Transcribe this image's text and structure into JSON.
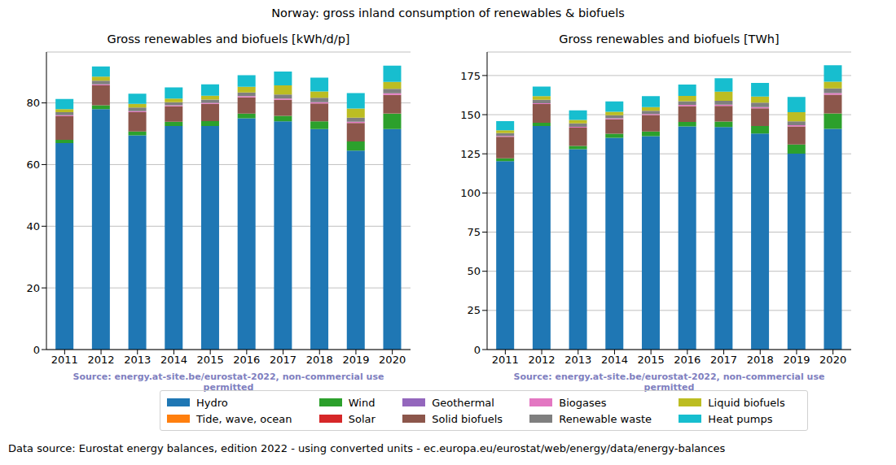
{
  "title": "Norway: gross inland consumption of renewables & biofuels",
  "note": "Data source: Eurostat energy balances, edition 2022 - using converted units - ec.europa.eu/eurostat/web/energy/data/energy-balances",
  "chart_data": [
    {
      "type": "bar",
      "title": "Gross renewables and biofuels [kWh/d/p]",
      "source": "Source: energy.at-site.be/eurostat-2022, non-commercial use permitted",
      "stacked": true,
      "grid": true,
      "legend": "bottom",
      "categories": [
        "2011",
        "2012",
        "2013",
        "2014",
        "2015",
        "2016",
        "2017",
        "2018",
        "2019",
        "2020"
      ],
      "ylim": [
        0,
        96.5
      ],
      "yticks": [
        0,
        20,
        40,
        60,
        80
      ],
      "series": [
        {
          "name": "Hydro",
          "color": "#1f77b4",
          "values": [
            67,
            78,
            69.5,
            72.5,
            72.5,
            75,
            74,
            71.5,
            64.5,
            71.5
          ]
        },
        {
          "name": "Tide, wave, ocean",
          "color": "#ff7f0e",
          "values": [
            0,
            0,
            0,
            0,
            0,
            0,
            0,
            0,
            0,
            0
          ]
        },
        {
          "name": "Wind",
          "color": "#2ca02c",
          "values": [
            1,
            1.2,
            1.2,
            1.4,
            1.6,
            1.5,
            1.8,
            2.5,
            3,
            5
          ]
        },
        {
          "name": "Solar",
          "color": "#d62728",
          "values": [
            0,
            0,
            0,
            0,
            0,
            0,
            0,
            0,
            0,
            0.1
          ]
        },
        {
          "name": "Geothermal",
          "color": "#9467bd",
          "values": [
            0,
            0,
            0,
            0,
            0,
            0,
            0,
            0,
            0,
            0
          ]
        },
        {
          "name": "Solid biofuels",
          "color": "#8c564b",
          "values": [
            7.7,
            6.5,
            6.3,
            5,
            5.6,
            5.3,
            5.2,
            5.8,
            6,
            6
          ]
        },
        {
          "name": "Biogases",
          "color": "#e377c2",
          "values": [
            0.3,
            0.3,
            0.3,
            0.3,
            0.3,
            0.4,
            0.4,
            0.4,
            0.4,
            0.5
          ]
        },
        {
          "name": "Renewable waste",
          "color": "#7f7f7f",
          "values": [
            1,
            1.2,
            1.2,
            1,
            1.1,
            1.2,
            1.3,
            1.5,
            1.3,
            1.5
          ]
        },
        {
          "name": "Liquid biofuels",
          "color": "#bcbd22",
          "values": [
            1,
            1.3,
            1.2,
            1.2,
            1.2,
            1.8,
            3,
            2,
            3,
            2.2
          ]
        },
        {
          "name": "Heat pumps",
          "color": "#17becf",
          "values": [
            3.3,
            3.3,
            3.3,
            3.6,
            3.7,
            3.8,
            4.5,
            4.5,
            5,
            5.3
          ]
        }
      ]
    },
    {
      "type": "bar",
      "title": "Gross renewables and biofuels [TWh]",
      "source": "Source: energy.at-site.be/eurostat-2022, non-commercial use permitted",
      "stacked": true,
      "grid": true,
      "legend": "bottom",
      "categories": [
        "2011",
        "2012",
        "2013",
        "2014",
        "2015",
        "2016",
        "2017",
        "2018",
        "2019",
        "2020"
      ],
      "ylim": [
        0,
        190
      ],
      "yticks": [
        0,
        25,
        50,
        75,
        100,
        125,
        150,
        175
      ],
      "series": [
        {
          "name": "Hydro",
          "color": "#1f77b4",
          "values": [
            120.3,
            142.7,
            127.9,
            135.2,
            136.3,
            142.5,
            142.1,
            138.0,
            125.1,
            140.9
          ]
        },
        {
          "name": "Tide, wave, ocean",
          "color": "#ff7f0e",
          "values": [
            0,
            0,
            0,
            0,
            0,
            0,
            0,
            0,
            0,
            0
          ]
        },
        {
          "name": "Wind",
          "color": "#2ca02c",
          "values": [
            1.8,
            2.2,
            2.2,
            2.6,
            3.0,
            2.9,
            3.5,
            4.8,
            5.8,
            9.9
          ]
        },
        {
          "name": "Solar",
          "color": "#d62728",
          "values": [
            0,
            0,
            0,
            0,
            0,
            0,
            0,
            0,
            0,
            0.2
          ]
        },
        {
          "name": "Geothermal",
          "color": "#9467bd",
          "values": [
            0,
            0,
            0,
            0,
            0,
            0,
            0,
            0,
            0,
            0
          ]
        },
        {
          "name": "Solid biofuels",
          "color": "#8c564b",
          "values": [
            13.8,
            11.9,
            11.6,
            9.3,
            10.5,
            10.1,
            10.0,
            11.2,
            11.6,
            11.8
          ]
        },
        {
          "name": "Biogases",
          "color": "#e377c2",
          "values": [
            0.5,
            0.5,
            0.6,
            0.6,
            0.6,
            0.8,
            0.8,
            0.8,
            0.8,
            1.0
          ]
        },
        {
          "name": "Renewable waste",
          "color": "#7f7f7f",
          "values": [
            1.8,
            2.2,
            2.2,
            1.9,
            2.1,
            2.3,
            2.5,
            2.9,
            2.5,
            3.0
          ]
        },
        {
          "name": "Liquid biofuels",
          "color": "#bcbd22",
          "values": [
            1.8,
            2.4,
            2.2,
            2.2,
            2.3,
            3.4,
            5.8,
            3.9,
            5.8,
            4.3
          ]
        },
        {
          "name": "Heat pumps",
          "color": "#17becf",
          "values": [
            5.9,
            6.0,
            6.1,
            6.7,
            7.0,
            7.2,
            8.6,
            8.7,
            9.7,
            10.4
          ]
        }
      ]
    }
  ]
}
